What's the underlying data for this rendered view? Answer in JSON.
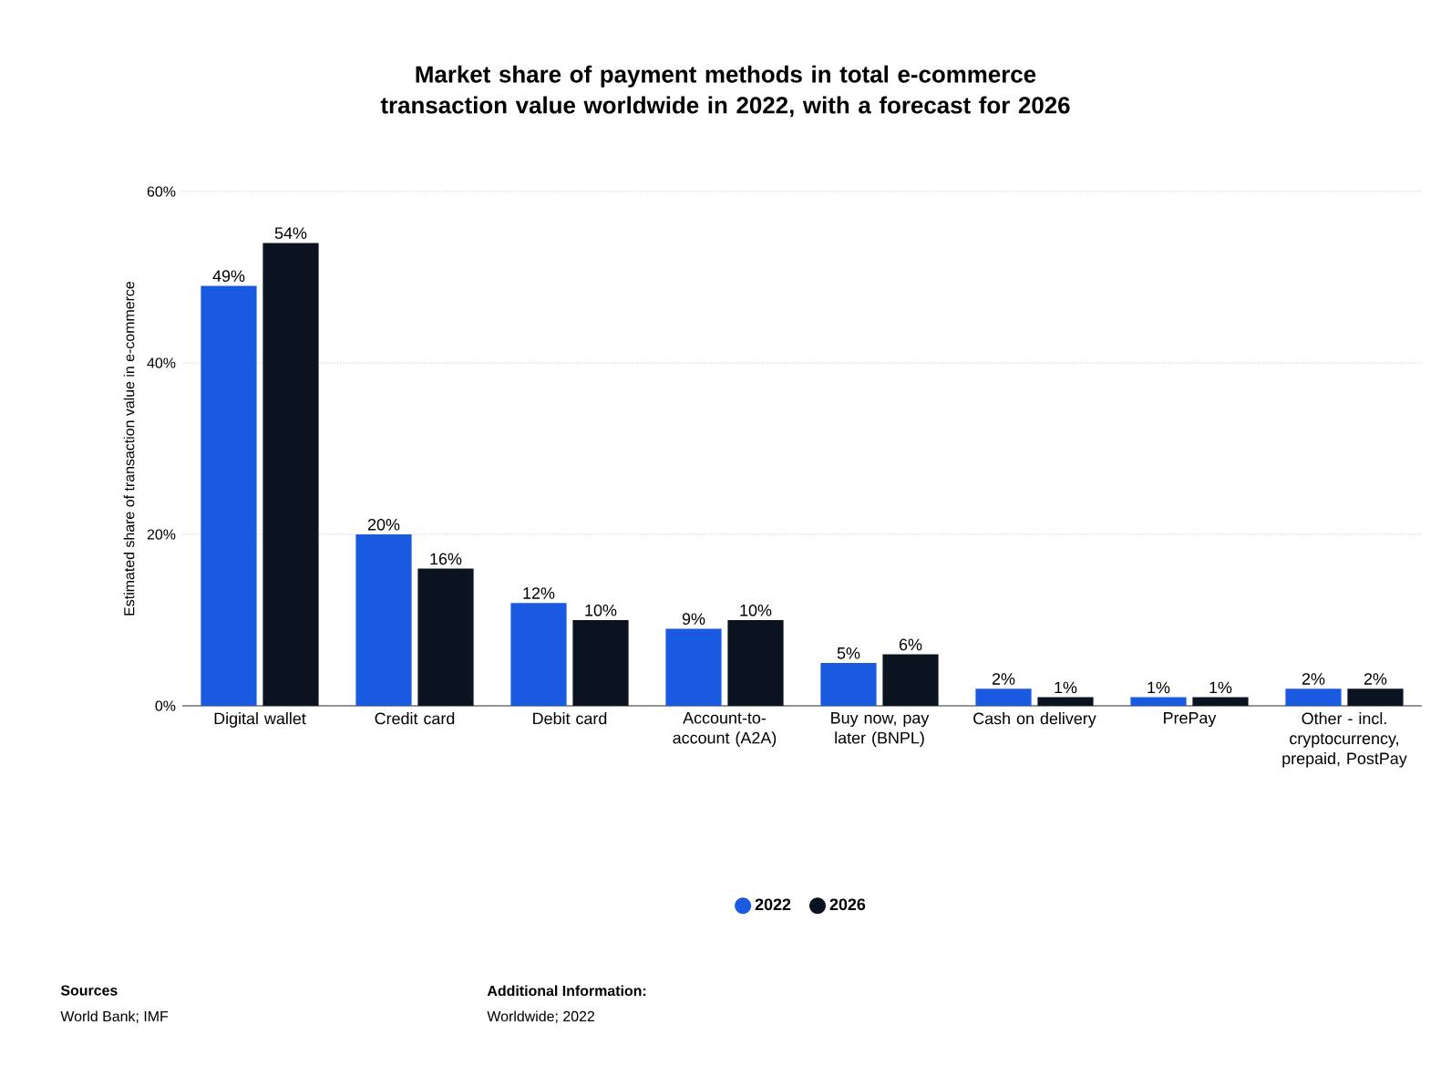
{
  "chart_data": {
    "type": "bar",
    "title": "Market share of payment methods in total e-commerce transaction value worldwide in 2022, with a forecast for 2026",
    "ylabel": "Estimated share of transaction value in e-commerce",
    "categories": [
      "Digital wallet",
      "Credit card",
      "Debit card",
      "Account-to-account (A2A)",
      "Buy now, pay later (BNPL)",
      "Cash on delivery",
      "PrePay",
      "Other - incl. cryptocurrency, prepaid, PostPay"
    ],
    "series": [
      {
        "name": "2022",
        "color": "#1a5ae0",
        "values": [
          49,
          20,
          12,
          9,
          5,
          2,
          1,
          2
        ],
        "value_labels": [
          "49%",
          "20%",
          "12%",
          "9%",
          "5%",
          "2%",
          "1%",
          "2%"
        ]
      },
      {
        "name": "2026",
        "color": "#0b1220",
        "values": [
          54,
          16,
          10,
          10,
          6,
          1,
          1,
          2
        ],
        "value_labels": [
          "54%",
          "16%",
          "10%",
          "10%",
          "6%",
          "1%",
          "1%",
          "2%"
        ]
      }
    ],
    "ylim": [
      0,
      60
    ],
    "yticks": [
      {
        "value": 0,
        "label": "0%"
      },
      {
        "value": 20,
        "label": "20%"
      },
      {
        "value": 40,
        "label": "40%"
      },
      {
        "value": 60,
        "label": "60%"
      }
    ],
    "grid": "y",
    "legend": "bottom",
    "annotations": [
      "Sources",
      "World Bank; IMF",
      "Additional Information:",
      "Worldwide; 2022"
    ]
  }
}
